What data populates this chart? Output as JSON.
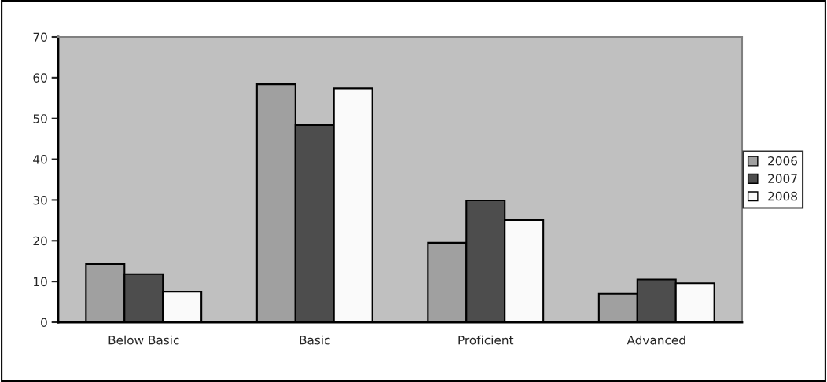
{
  "chart_data": {
    "type": "bar",
    "categories": [
      "Below Basic",
      "Basic",
      "Proficient",
      "Advanced"
    ],
    "series": [
      {
        "name": "2006",
        "color": "#a0a0a0",
        "values": [
          14.3,
          58.4,
          19.5,
          7.0
        ]
      },
      {
        "name": "2007",
        "color": "#4d4d4d",
        "values": [
          11.8,
          48.4,
          29.9,
          10.5
        ]
      },
      {
        "name": "2008",
        "color": "#fafafa",
        "values": [
          7.5,
          57.4,
          25.1,
          9.6
        ]
      }
    ],
    "ylim": [
      0,
      70
    ],
    "yticks": [
      0,
      10,
      20,
      30,
      40,
      50,
      60,
      70
    ],
    "grid": false,
    "legend": "right"
  }
}
